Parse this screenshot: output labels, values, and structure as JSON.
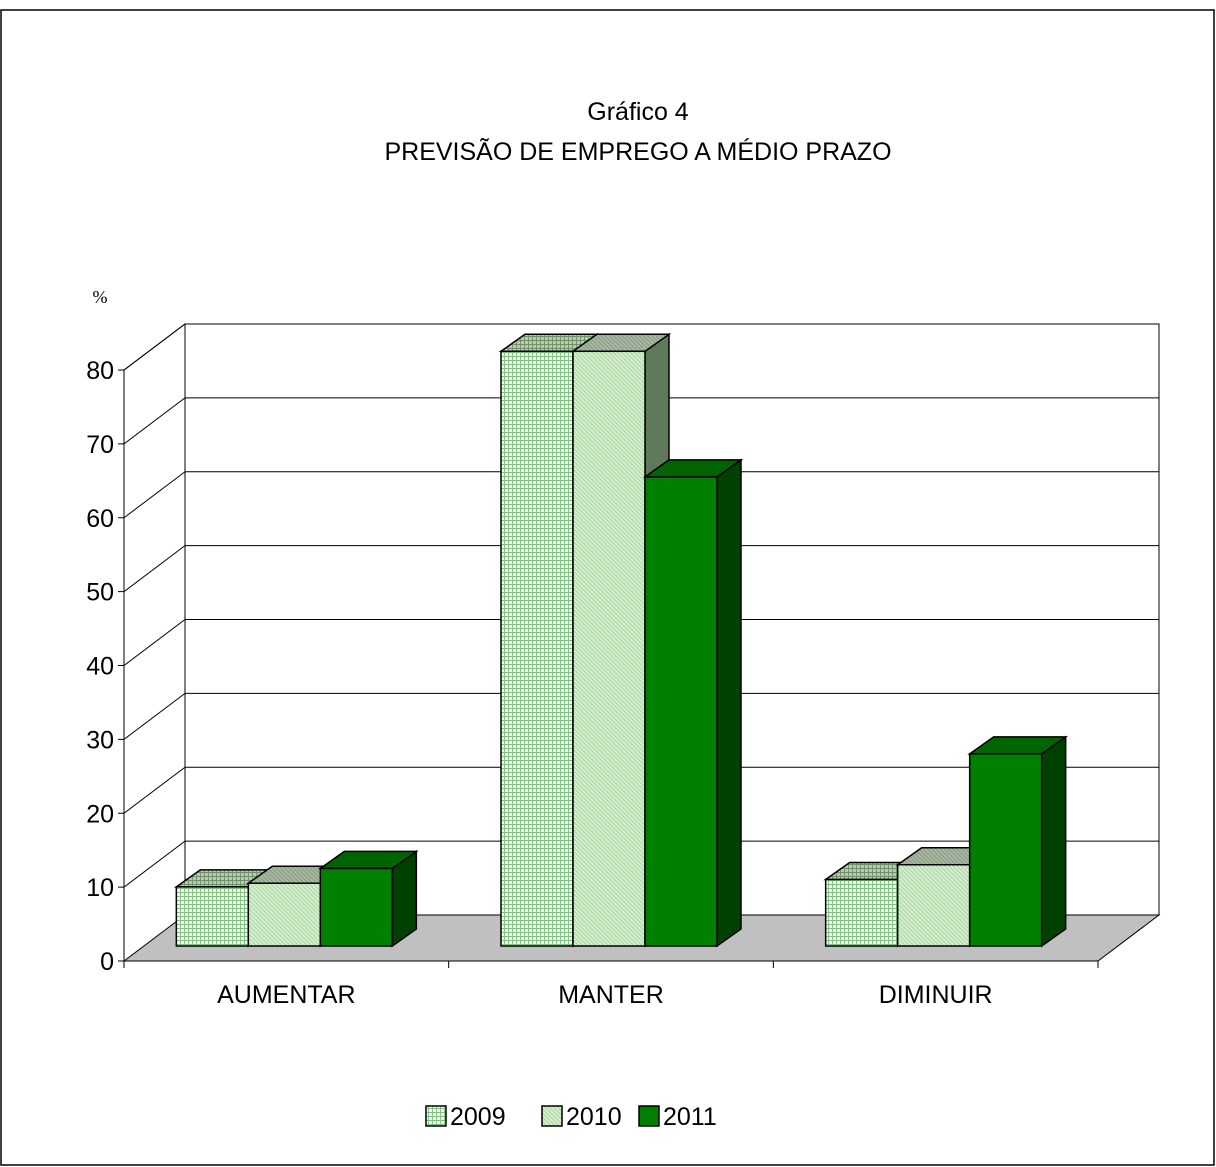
{
  "chart_data": {
    "type": "bar",
    "title": "Gráfico 4",
    "subtitle": "PREVISÃO DE EMPREGO A MÉDIO PRAZO",
    "ylabel": "%",
    "xlabel": "",
    "ylim": [
      0,
      80
    ],
    "yticks": [
      "0",
      "10",
      "20",
      "30",
      "40",
      "50",
      "60",
      "70",
      "80"
    ],
    "categories": [
      "AUMENTAR",
      "MANTER",
      "DIMINUIR"
    ],
    "series": [
      {
        "name": "2009",
        "values": [
          8,
          80.5,
          9
        ]
      },
      {
        "name": "2010",
        "values": [
          8.5,
          80.5,
          11
        ]
      },
      {
        "name": "2011",
        "values": [
          10.5,
          63.5,
          26
        ]
      }
    ],
    "grid": true,
    "legend": "bottom",
    "colors": {
      "2009": "#e6f3e0",
      "2010": "#c8e6c0",
      "2011": "#008000",
      "floor": "#c0c0c0"
    }
  }
}
